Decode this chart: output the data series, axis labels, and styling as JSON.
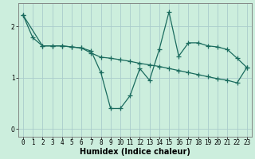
{
  "xlabel": "Humidex (Indice chaleur)",
  "ylabel": "",
  "background_color": "#cceedd",
  "grid_color": "#aacccc",
  "line_color": "#1a6b5e",
  "xlim": [
    -0.5,
    23.5
  ],
  "ylim": [
    -0.15,
    2.45
  ],
  "yticks": [
    0,
    1,
    2
  ],
  "xtick_labels": [
    "0",
    "1",
    "2",
    "3",
    "4",
    "5",
    "6",
    "7",
    "8",
    "9",
    "10",
    "11",
    "12",
    "13",
    "14",
    "15",
    "16",
    "17",
    "18",
    "19",
    "20",
    "21",
    "22",
    "23"
  ],
  "xtick_positions": [
    0,
    1,
    2,
    3,
    4,
    5,
    6,
    7,
    8,
    9,
    10,
    11,
    12,
    13,
    14,
    15,
    16,
    17,
    18,
    19,
    20,
    21,
    22,
    23
  ],
  "series1_x": [
    0,
    1,
    2,
    3,
    4,
    5,
    6,
    7,
    8,
    9,
    10,
    11,
    12,
    13,
    14,
    15,
    16,
    17,
    18,
    19,
    20,
    21,
    22,
    23
  ],
  "series1_y": [
    2.22,
    1.78,
    1.62,
    1.62,
    1.62,
    1.6,
    1.58,
    1.52,
    1.1,
    0.4,
    0.4,
    0.65,
    1.18,
    0.95,
    1.55,
    2.28,
    1.42,
    1.68,
    1.68,
    1.62,
    1.6,
    1.55,
    1.38,
    1.2
  ],
  "series2_x": [
    0,
    2,
    3,
    4,
    5,
    6,
    7,
    8,
    9,
    10,
    11,
    12,
    13,
    14,
    15,
    16,
    17,
    18,
    19,
    20,
    21,
    22,
    23
  ],
  "series2_y": [
    2.22,
    1.62,
    1.62,
    1.62,
    1.6,
    1.58,
    1.48,
    1.4,
    1.38,
    1.35,
    1.32,
    1.28,
    1.25,
    1.22,
    1.18,
    1.14,
    1.1,
    1.06,
    1.02,
    0.98,
    0.95,
    0.9,
    1.2
  ],
  "marker": "+",
  "markersize": 4,
  "linewidth": 0.9,
  "tick_fontsize": 5.5,
  "label_fontsize": 7.0
}
